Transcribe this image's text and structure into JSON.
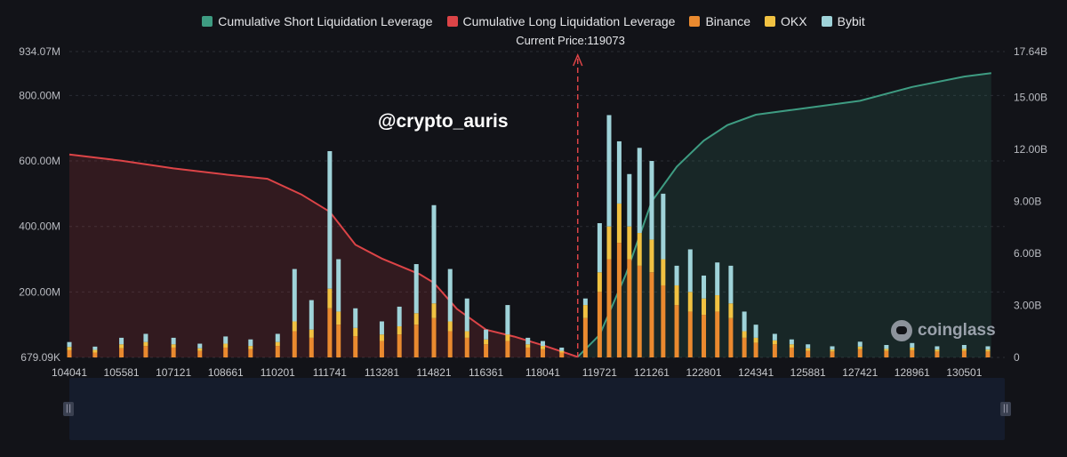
{
  "legend": [
    {
      "label": "Cumulative Short Liquidation Leverage",
      "color": "#3e9c82"
    },
    {
      "label": "Cumulative Long Liquidation Leverage",
      "color": "#dc4447"
    },
    {
      "label": "Binance",
      "color": "#ea8a2f"
    },
    {
      "label": "OKX",
      "color": "#f1c242"
    },
    {
      "label": "Bybit",
      "color": "#9fd3d9"
    }
  ],
  "current_price_label": "Current Price:119073",
  "watermark": "@crypto_auris",
  "brand": "coinglass",
  "chart_data": {
    "type": "bar",
    "x_ticks": [
      "104041",
      "105581",
      "107121",
      "108661",
      "110201",
      "111741",
      "113281",
      "114821",
      "116361",
      "118041",
      "119721",
      "121261",
      "122801",
      "124341",
      "125881",
      "127421",
      "128961",
      "130501"
    ],
    "y_left_ticks": [
      "679.09K",
      "200.00M",
      "400.00M",
      "600.00M",
      "800.00M",
      "934.07M"
    ],
    "y_left_values": [
      0,
      200,
      400,
      600,
      800,
      934.07
    ],
    "y_left_range": [
      0,
      934.07
    ],
    "y_right_ticks": [
      "0",
      "3.00B",
      "6.00B",
      "9.00B",
      "12.00B",
      "15.00B",
      "17.64B"
    ],
    "y_right_values": [
      0,
      3,
      6,
      9,
      12,
      15,
      17.64
    ],
    "y_right_range": [
      0,
      17.64
    ],
    "current_price": 119073,
    "long_cumulative": [
      [
        104041,
        11.7
      ],
      [
        105581,
        11.35
      ],
      [
        107121,
        10.9
      ],
      [
        108661,
        10.55
      ],
      [
        109900,
        10.3
      ],
      [
        110900,
        9.4
      ],
      [
        111741,
        8.4
      ],
      [
        112500,
        6.5
      ],
      [
        113281,
        5.7
      ],
      [
        114400,
        4.8
      ],
      [
        114821,
        4.3
      ],
      [
        115500,
        2.8
      ],
      [
        116361,
        1.6
      ],
      [
        117200,
        1.2
      ],
      [
        118041,
        0.7
      ],
      [
        119073,
        0.03
      ]
    ],
    "short_cumulative": [
      [
        119073,
        0.03
      ],
      [
        119721,
        1.3
      ],
      [
        120500,
        4.8
      ],
      [
        121261,
        9.0
      ],
      [
        122000,
        11.0
      ],
      [
        122801,
        12.5
      ],
      [
        123500,
        13.4
      ],
      [
        124341,
        14.0
      ],
      [
        125881,
        14.4
      ],
      [
        127421,
        14.8
      ],
      [
        128961,
        15.6
      ],
      [
        130501,
        16.2
      ],
      [
        131300,
        16.4
      ]
    ],
    "bars": [
      {
        "x": 104041,
        "binance": 22,
        "okx": 10,
        "bybit": 15
      },
      {
        "x": 104800,
        "binance": 15,
        "okx": 8,
        "bybit": 10
      },
      {
        "x": 105581,
        "binance": 28,
        "okx": 12,
        "bybit": 20
      },
      {
        "x": 106300,
        "binance": 35,
        "okx": 12,
        "bybit": 25
      },
      {
        "x": 107121,
        "binance": 30,
        "okx": 10,
        "bybit": 20
      },
      {
        "x": 107900,
        "binance": 20,
        "okx": 8,
        "bybit": 14
      },
      {
        "x": 108661,
        "binance": 30,
        "okx": 12,
        "bybit": 22
      },
      {
        "x": 109400,
        "binance": 25,
        "okx": 10,
        "bybit": 20
      },
      {
        "x": 110201,
        "binance": 35,
        "okx": 12,
        "bybit": 25
      },
      {
        "x": 110700,
        "binance": 80,
        "okx": 30,
        "bybit": 160
      },
      {
        "x": 111200,
        "binance": 60,
        "okx": 25,
        "bybit": 90
      },
      {
        "x": 111741,
        "binance": 150,
        "okx": 60,
        "bybit": 420
      },
      {
        "x": 112000,
        "binance": 100,
        "okx": 40,
        "bybit": 160
      },
      {
        "x": 112500,
        "binance": 65,
        "okx": 25,
        "bybit": 60
      },
      {
        "x": 113281,
        "binance": 50,
        "okx": 20,
        "bybit": 40
      },
      {
        "x": 113800,
        "binance": 70,
        "okx": 25,
        "bybit": 60
      },
      {
        "x": 114300,
        "binance": 100,
        "okx": 35,
        "bybit": 150
      },
      {
        "x": 114821,
        "binance": 120,
        "okx": 45,
        "bybit": 300
      },
      {
        "x": 115300,
        "binance": 80,
        "okx": 30,
        "bybit": 160
      },
      {
        "x": 115800,
        "binance": 60,
        "okx": 20,
        "bybit": 100
      },
      {
        "x": 116361,
        "binance": 40,
        "okx": 15,
        "bybit": 30
      },
      {
        "x": 117000,
        "binance": 50,
        "okx": 20,
        "bybit": 90
      },
      {
        "x": 117600,
        "binance": 30,
        "okx": 10,
        "bybit": 20
      },
      {
        "x": 118041,
        "binance": 25,
        "okx": 10,
        "bybit": 15
      },
      {
        "x": 118600,
        "binance": 15,
        "okx": 5,
        "bybit": 10
      },
      {
        "x": 119300,
        "binance": 120,
        "okx": 40,
        "bybit": 20
      },
      {
        "x": 119721,
        "binance": 200,
        "okx": 60,
        "bybit": 150
      },
      {
        "x": 120000,
        "binance": 300,
        "okx": 100,
        "bybit": 340
      },
      {
        "x": 120300,
        "binance": 350,
        "okx": 120,
        "bybit": 190
      },
      {
        "x": 120600,
        "binance": 300,
        "okx": 100,
        "bybit": 160
      },
      {
        "x": 120900,
        "binance": 280,
        "okx": 100,
        "bybit": 260
      },
      {
        "x": 121261,
        "binance": 260,
        "okx": 100,
        "bybit": 240
      },
      {
        "x": 121600,
        "binance": 220,
        "okx": 80,
        "bybit": 200
      },
      {
        "x": 122000,
        "binance": 160,
        "okx": 60,
        "bybit": 60
      },
      {
        "x": 122400,
        "binance": 140,
        "okx": 60,
        "bybit": 130
      },
      {
        "x": 122801,
        "binance": 130,
        "okx": 50,
        "bybit": 70
      },
      {
        "x": 123200,
        "binance": 140,
        "okx": 50,
        "bybit": 100
      },
      {
        "x": 123600,
        "binance": 120,
        "okx": 45,
        "bybit": 115
      },
      {
        "x": 124000,
        "binance": 60,
        "okx": 20,
        "bybit": 60
      },
      {
        "x": 124341,
        "binance": 45,
        "okx": 15,
        "bybit": 40
      },
      {
        "x": 124900,
        "binance": 40,
        "okx": 12,
        "bybit": 20
      },
      {
        "x": 125400,
        "binance": 30,
        "okx": 10,
        "bybit": 15
      },
      {
        "x": 125881,
        "binance": 20,
        "okx": 8,
        "bybit": 12
      },
      {
        "x": 126600,
        "binance": 18,
        "okx": 6,
        "bybit": 10
      },
      {
        "x": 127421,
        "binance": 25,
        "okx": 8,
        "bybit": 15
      },
      {
        "x": 128200,
        "binance": 20,
        "okx": 6,
        "bybit": 12
      },
      {
        "x": 128961,
        "binance": 22,
        "okx": 8,
        "bybit": 14
      },
      {
        "x": 129700,
        "binance": 18,
        "okx": 6,
        "bybit": 10
      },
      {
        "x": 130501,
        "binance": 20,
        "okx": 6,
        "bybit": 12
      },
      {
        "x": 131200,
        "binance": 18,
        "okx": 6,
        "bybit": 10
      }
    ],
    "grid": true,
    "legend_position": "top-center"
  }
}
